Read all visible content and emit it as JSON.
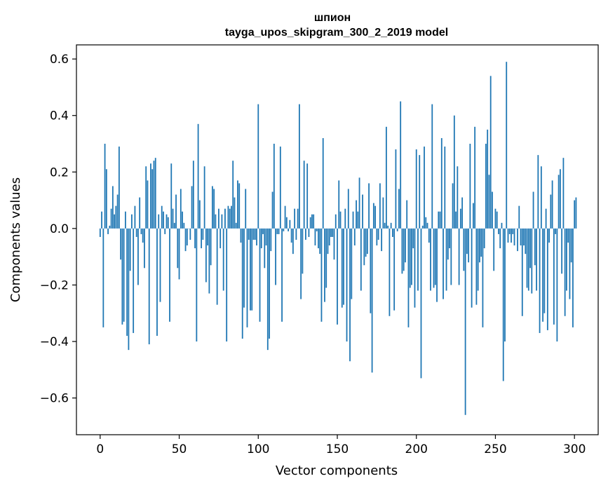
{
  "chart_data": {
    "type": "bar",
    "title": "шпион",
    "subtitle": "tayga_upos_skipgram_300_2_2019 model",
    "xlabel": "Vector components",
    "ylabel": "Components values",
    "xlim": [
      -15,
      315
    ],
    "ylim": [
      -0.73,
      0.65
    ],
    "xticks": [
      0,
      50,
      100,
      150,
      200,
      250,
      300
    ],
    "xtick_labels": [
      "0",
      "50",
      "100",
      "150",
      "200",
      "250",
      "300"
    ],
    "yticks": [
      -0.6,
      -0.4,
      -0.2,
      0.0,
      0.2,
      0.4,
      0.6
    ],
    "ytick_labels": [
      "−0.6",
      "−0.4",
      "−0.2",
      "0.0",
      "0.2",
      "0.4",
      "0.6"
    ],
    "grid": false,
    "bar_color": "#1f77b4",
    "values": [
      -0.03,
      0.06,
      -0.35,
      0.3,
      0.21,
      -0.02,
      0.01,
      0.07,
      0.15,
      0.05,
      0.08,
      0.12,
      0.29,
      -0.11,
      -0.34,
      -0.33,
      0.06,
      -0.38,
      -0.43,
      -0.15,
      0.05,
      -0.37,
      0.08,
      -0.03,
      -0.2,
      0.11,
      -0.02,
      -0.05,
      -0.14,
      0.22,
      0.17,
      -0.41,
      0.23,
      0.21,
      0.24,
      0.25,
      -0.38,
      0.05,
      -0.26,
      0.08,
      0.06,
      -0.02,
      0.05,
      0.04,
      -0.33,
      0.23,
      0.07,
      0.02,
      0.12,
      -0.14,
      -0.18,
      0.14,
      0.06,
      0.02,
      -0.08,
      -0.06,
      0.0,
      -0.04,
      0.15,
      0.24,
      -0.07,
      -0.4,
      0.37,
      0.1,
      -0.07,
      -0.04,
      0.22,
      -0.19,
      -0.06,
      -0.23,
      -0.13,
      0.15,
      0.14,
      0.05,
      -0.27,
      0.07,
      -0.07,
      0.05,
      -0.22,
      0.07,
      -0.4,
      0.08,
      0.07,
      0.08,
      0.24,
      0.11,
      0.02,
      0.17,
      0.16,
      -0.05,
      -0.39,
      -0.28,
      0.14,
      -0.35,
      -0.04,
      -0.29,
      -0.29,
      -0.04,
      -0.04,
      -0.06,
      0.44,
      -0.33,
      -0.07,
      -0.02,
      -0.14,
      -0.06,
      -0.43,
      -0.39,
      -0.08,
      0.13,
      0.3,
      -0.2,
      -0.02,
      -0.02,
      0.29,
      -0.33,
      -0.01,
      0.08,
      0.04,
      -0.01,
      0.03,
      -0.05,
      -0.09,
      0.07,
      -0.04,
      0.07,
      0.44,
      -0.25,
      -0.16,
      0.24,
      -0.04,
      0.23,
      -0.03,
      0.04,
      0.05,
      0.05,
      -0.06,
      -0.01,
      -0.07,
      -0.09,
      -0.33,
      0.32,
      -0.26,
      -0.21,
      -0.09,
      -0.06,
      -0.03,
      -0.03,
      -0.11,
      0.05,
      -0.34,
      0.17,
      0.06,
      -0.28,
      -0.27,
      0.07,
      -0.4,
      0.14,
      -0.47,
      -0.25,
      0.06,
      -0.06,
      0.1,
      0.06,
      0.18,
      -0.22,
      0.12,
      -0.13,
      -0.1,
      -0.09,
      0.16,
      -0.3,
      -0.51,
      0.09,
      0.08,
      -0.06,
      -0.04,
      0.16,
      -0.08,
      0.11,
      0.02,
      0.36,
      0.01,
      -0.31,
      0.02,
      -0.03,
      -0.29,
      0.28,
      -0.01,
      0.14,
      0.45,
      -0.16,
      -0.15,
      -0.12,
      0.1,
      -0.35,
      -0.21,
      -0.2,
      -0.07,
      -0.28,
      0.28,
      -0.22,
      0.26,
      -0.53,
      0.01,
      0.29,
      0.04,
      0.02,
      -0.05,
      -0.22,
      0.44,
      -0.21,
      -0.2,
      -0.26,
      0.06,
      0.06,
      0.32,
      -0.25,
      0.29,
      -0.22,
      -0.11,
      -0.07,
      -0.2,
      0.16,
      0.4,
      0.06,
      0.22,
      -0.2,
      0.07,
      0.11,
      -0.15,
      -0.66,
      -0.09,
      -0.12,
      0.3,
      -0.28,
      0.09,
      0.36,
      -0.27,
      -0.22,
      -0.12,
      -0.1,
      -0.35,
      -0.07,
      0.3,
      0.35,
      0.19,
      0.54,
      0.13,
      -0.15,
      0.07,
      0.06,
      -0.02,
      -0.07,
      0.02,
      -0.54,
      -0.4,
      0.59,
      -0.05,
      -0.02,
      -0.05,
      -0.02,
      -0.06,
      0.0,
      -0.08,
      0.08,
      -0.06,
      -0.31,
      -0.06,
      -0.09,
      -0.21,
      -0.22,
      -0.14,
      -0.23,
      0.13,
      -0.13,
      -0.22,
      0.26,
      -0.37,
      0.22,
      -0.33,
      -0.3,
      0.07,
      -0.36,
      -0.05,
      0.12,
      0.17,
      -0.34,
      -0.02,
      -0.4,
      0.19,
      0.21,
      -0.16,
      0.25,
      -0.31,
      -0.22,
      -0.05,
      -0.25,
      -0.12,
      -0.35,
      0.1,
      0.11
    ]
  }
}
